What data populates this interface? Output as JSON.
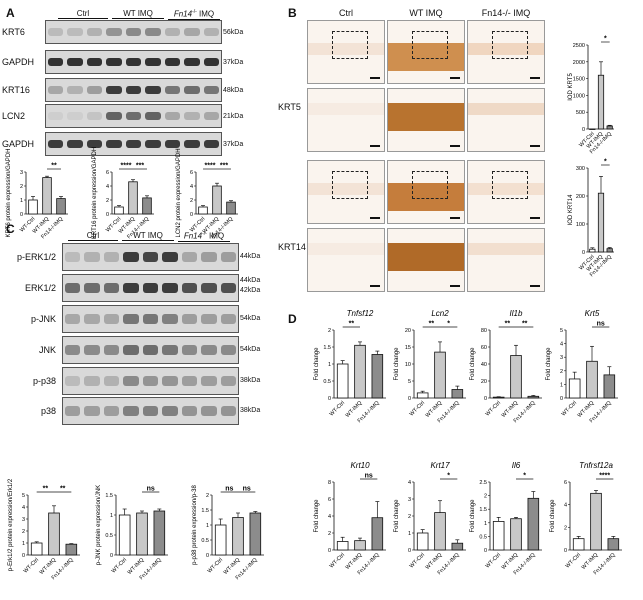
{
  "panels": {
    "a": "A",
    "b": "B",
    "c": "C",
    "d": "D"
  },
  "groups": {
    "ctrl": "Ctrl",
    "wt": "WT IMQ",
    "fn14": "Fn14",
    "fn14_suffix": "-/-",
    "fn14_tail": " IMQ"
  },
  "blot_a": {
    "rows": [
      {
        "label": "KRT6",
        "kda": "56kDa"
      },
      {
        "label": "GAPDH",
        "kda": "37kDa"
      },
      {
        "label": "KRT16",
        "kda": "48kDa"
      },
      {
        "label": "LCN2",
        "kda": "21kDa"
      },
      {
        "label": "GAPDH",
        "kda": "37kDa"
      }
    ]
  },
  "blot_c": {
    "rows": [
      {
        "label": "p-ERK1/2",
        "kda": "44kDa"
      },
      {
        "label": "ERK1/2",
        "kda": "44kDa",
        "kda2": "42kDa"
      },
      {
        "label": "p-JNK",
        "kda": "54kDa"
      },
      {
        "label": "JNK",
        "kda": "54kDa"
      },
      {
        "label": "p-p38",
        "kda": "38kDa"
      },
      {
        "label": "p38",
        "kda": "38kDa"
      }
    ]
  },
  "ihc": {
    "columns": [
      "Ctrl",
      "WT IMQ",
      "Fn14-/- IMQ"
    ],
    "rows": [
      "KRT5",
      "KRT14"
    ]
  },
  "chart_data": [
    {
      "id": "a1",
      "panel": "A",
      "type": "bar",
      "categories": [
        "WT-Ctrl",
        "WT-IMQ",
        "Fn14-/-IMQ"
      ],
      "values": [
        1.0,
        2.6,
        1.1
      ],
      "errors": [
        0.25,
        0.1,
        0.15
      ],
      "ylabel": "KRT6 protein expression/GAPDH",
      "ylim": [
        0,
        3
      ],
      "yticks": [
        0,
        1,
        2,
        3
      ],
      "sig": [
        {
          "from": 1,
          "to": 2,
          "text": "**"
        }
      ]
    },
    {
      "id": "a2",
      "panel": "A",
      "type": "bar",
      "categories": [
        "WT-Ctrl",
        "WT-IMQ",
        "Fn14-/-IMQ"
      ],
      "values": [
        1.0,
        4.6,
        2.3
      ],
      "errors": [
        0.2,
        0.3,
        0.3
      ],
      "ylabel": "KRT16 protein expression/GAPDH",
      "ylim": [
        0,
        6
      ],
      "yticks": [
        0,
        2,
        4,
        6
      ],
      "sig": [
        {
          "from": 0,
          "to": 1,
          "text": "****"
        },
        {
          "from": 1,
          "to": 2,
          "text": "***"
        }
      ]
    },
    {
      "id": "a3",
      "panel": "A",
      "type": "bar",
      "categories": [
        "WT-Ctrl",
        "WT-IMQ",
        "Fn14-/-IMQ"
      ],
      "values": [
        1.0,
        4.0,
        1.7
      ],
      "errors": [
        0.2,
        0.4,
        0.2
      ],
      "ylabel": "LCN2 protein expression/GAPDH",
      "ylim": [
        0,
        6
      ],
      "yticks": [
        0,
        2,
        4,
        6
      ],
      "sig": [
        {
          "from": 0,
          "to": 1,
          "text": "****"
        },
        {
          "from": 1,
          "to": 2,
          "text": "***"
        }
      ]
    },
    {
      "id": "b1",
      "panel": "B",
      "type": "bar",
      "categories": [
        "WT-Ctrl",
        "WT-IMQ",
        "Fn14-/-IMQ"
      ],
      "values": [
        0,
        1600,
        90
      ],
      "errors": [
        0,
        400,
        20
      ],
      "ylabel": "IOD KRT5",
      "ylim": [
        0,
        2500
      ],
      "yticks": [
        0,
        500,
        1000,
        1500,
        2000,
        2500
      ],
      "sig": [
        {
          "from": 1,
          "to": 2,
          "text": "*"
        }
      ]
    },
    {
      "id": "b2",
      "panel": "B",
      "type": "bar",
      "categories": [
        "WT-Ctrl",
        "WT-IMQ",
        "Fn14-/-IMQ"
      ],
      "values": [
        10,
        210,
        12
      ],
      "errors": [
        5,
        60,
        4
      ],
      "ylabel": "IOD KRT14",
      "ylim": [
        0,
        300
      ],
      "yticks": [
        0,
        100,
        200,
        300
      ],
      "sig": [
        {
          "from": 1,
          "to": 2,
          "text": "*"
        }
      ]
    },
    {
      "id": "c1",
      "panel": "C",
      "type": "bar",
      "categories": [
        "WT-Ctrl",
        "WT-IMQ",
        "Fn14-/-IMQ"
      ],
      "values": [
        1.0,
        3.5,
        0.9
      ],
      "errors": [
        0.1,
        0.6,
        0.05
      ],
      "ylabel": "p-Erk1/2 protein expression/Erk1/2",
      "ylim": [
        0,
        5
      ],
      "yticks": [
        0,
        1,
        2,
        3,
        4,
        5
      ],
      "sig": [
        {
          "from": 0,
          "to": 1,
          "text": "**"
        },
        {
          "from": 1,
          "to": 2,
          "text": "**"
        }
      ]
    },
    {
      "id": "c2",
      "panel": "C",
      "type": "bar",
      "categories": [
        "WT-Ctrl",
        "WT-IMQ",
        "Fn14-/-IMQ"
      ],
      "values": [
        1.0,
        1.05,
        1.1
      ],
      "errors": [
        0.15,
        0.05,
        0.05
      ],
      "ylabel": "p-JNK protein expression/JNK",
      "ylim": [
        0,
        1.5
      ],
      "yticks": [
        0.0,
        0.5,
        1.0,
        1.5
      ],
      "sig": [
        {
          "from": 1,
          "to": 2,
          "text": "ns"
        }
      ]
    },
    {
      "id": "c3",
      "panel": "C",
      "type": "bar",
      "categories": [
        "WT-Ctrl",
        "WT-IMQ",
        "Fn14-/-IMQ"
      ],
      "values": [
        1.0,
        1.25,
        1.4
      ],
      "errors": [
        0.2,
        0.15,
        0.05
      ],
      "ylabel": "p-p38 protein expression/p-38",
      "ylim": [
        0,
        2.0
      ],
      "yticks": [
        0.0,
        0.5,
        1.0,
        1.5,
        2.0
      ],
      "sig": [
        {
          "from": 0,
          "to": 1,
          "text": "ns"
        },
        {
          "from": 1,
          "to": 2,
          "text": "ns"
        }
      ]
    },
    {
      "id": "d1",
      "panel": "D",
      "type": "bar",
      "title": "Tnfsf12",
      "categories": [
        "WT-Ctrl",
        "WT-IMQ",
        "Fn14-/-IMQ"
      ],
      "values": [
        1.0,
        1.55,
        1.28
      ],
      "errors": [
        0.1,
        0.1,
        0.1
      ],
      "ylabel": "Fold change",
      "ylim": [
        0,
        2.0
      ],
      "yticks": [
        0.0,
        0.5,
        1.0,
        1.5,
        2.0
      ],
      "sig": [
        {
          "from": 0,
          "to": 1,
          "text": "**"
        }
      ]
    },
    {
      "id": "d2",
      "panel": "D",
      "type": "bar",
      "title": "Lcn2",
      "categories": [
        "WT-Ctrl",
        "WT-IMQ",
        "Fn14-/-IMQ"
      ],
      "values": [
        1.5,
        13.5,
        2.5
      ],
      "errors": [
        0.5,
        3.0,
        1.0
      ],
      "ylabel": "Fold change",
      "ylim": [
        0,
        20
      ],
      "yticks": [
        0,
        5,
        10,
        15,
        20
      ],
      "sig": [
        {
          "from": 0,
          "to": 1,
          "text": "**"
        },
        {
          "from": 1,
          "to": 2,
          "text": "*"
        }
      ]
    },
    {
      "id": "d3",
      "panel": "D",
      "type": "bar",
      "title": "Il1b",
      "categories": [
        "WT-Ctrl",
        "WT-IMQ",
        "Fn14-/-IMQ"
      ],
      "values": [
        1.0,
        50,
        2.0
      ],
      "errors": [
        0.5,
        12,
        1.0
      ],
      "ylabel": "Fold change",
      "ylim": [
        0,
        80
      ],
      "yticks": [
        0,
        20,
        40,
        60,
        80
      ],
      "sig": [
        {
          "from": 0,
          "to": 1,
          "text": "**"
        },
        {
          "from": 1,
          "to": 2,
          "text": "**"
        }
      ]
    },
    {
      "id": "d4",
      "panel": "D",
      "type": "bar",
      "title": "Krt5",
      "categories": [
        "WT-Ctrl",
        "WT-IMQ",
        "Fn14-/-IMQ"
      ],
      "values": [
        1.4,
        2.7,
        1.7
      ],
      "errors": [
        0.5,
        1.1,
        0.6
      ],
      "ylabel": "Fold change",
      "ylim": [
        0,
        5
      ],
      "yticks": [
        0,
        1,
        2,
        3,
        4,
        5
      ],
      "sig": [
        {
          "from": 1,
          "to": 2,
          "text": "ns"
        }
      ]
    },
    {
      "id": "d5",
      "panel": "D",
      "type": "bar",
      "title": "Krt10",
      "categories": [
        "WT-Ctrl",
        "WT-IMQ",
        "Fn14-/-IMQ"
      ],
      "values": [
        1.0,
        1.1,
        3.8
      ],
      "errors": [
        0.5,
        0.3,
        1.9
      ],
      "ylabel": "Fold change",
      "ylim": [
        0,
        8
      ],
      "yticks": [
        0,
        2,
        4,
        6,
        8
      ],
      "sig": [
        {
          "from": 1,
          "to": 2,
          "text": "ns"
        }
      ]
    },
    {
      "id": "d6",
      "panel": "D",
      "type": "bar",
      "title": "Krt17",
      "categories": [
        "WT-Ctrl",
        "WT-IMQ",
        "Fn14-/-IMQ"
      ],
      "values": [
        1.0,
        2.2,
        0.4
      ],
      "errors": [
        0.2,
        0.7,
        0.2
      ],
      "ylabel": "Fold change",
      "ylim": [
        0,
        4
      ],
      "yticks": [
        0,
        1,
        2,
        3,
        4
      ],
      "sig": [
        {
          "from": 1,
          "to": 2,
          "text": "*"
        }
      ]
    },
    {
      "id": "d7",
      "panel": "D",
      "type": "bar",
      "title": "Il6",
      "categories": [
        "WT-Ctrl",
        "WT-IMQ",
        "Fn14-/-IMQ"
      ],
      "values": [
        1.05,
        1.15,
        1.9
      ],
      "errors": [
        0.15,
        0.05,
        0.25
      ],
      "ylabel": "Fold change",
      "ylim": [
        0,
        2.5
      ],
      "yticks": [
        0.0,
        0.5,
        1.0,
        1.5,
        2.0,
        2.5
      ],
      "sig": [
        {
          "from": 1,
          "to": 2,
          "text": "*"
        }
      ]
    },
    {
      "id": "d8",
      "panel": "D",
      "type": "bar",
      "title": "Tnfrsf12a",
      "categories": [
        "WT-Ctrl",
        "WT-IMQ",
        "Fn14-/-IMQ"
      ],
      "values": [
        1.0,
        5.0,
        1.0
      ],
      "errors": [
        0.2,
        0.25,
        0.2
      ],
      "ylabel": "Fold change",
      "ylim": [
        0,
        6
      ],
      "yticks": [
        0,
        2,
        4,
        6
      ],
      "sig": [
        {
          "from": 1,
          "to": 2,
          "text": "****"
        }
      ]
    }
  ]
}
